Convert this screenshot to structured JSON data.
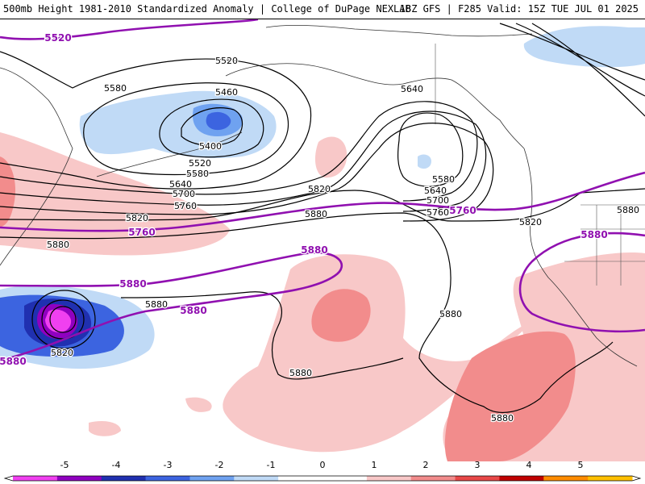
{
  "header": {
    "left_title": "500mb Height 1981-2010 Standardized Anomaly | College of DuPage NEXLAB",
    "right_title": "18Z GFS | F285 Valid: 15Z TUE JUL 01 2025"
  },
  "colors": {
    "ref_contour": "#9010b0",
    "contour": "#000000",
    "coast": "#333333",
    "scale": [
      "#f040f0",
      "#9000c0",
      "#2030b0",
      "#3c64e0",
      "#6fa2f0",
      "#c0daf6",
      "#ffffff",
      "#ffffff",
      "#f8c8c8",
      "#f28c8c",
      "#e84848",
      "#c00000",
      "#ff8c00",
      "#ffc000"
    ]
  },
  "contour_labels": [
    {
      "text": "5520",
      "kind": "ref"
    },
    {
      "text": "5520",
      "kind": "normal"
    },
    {
      "text": "5460",
      "kind": "normal"
    },
    {
      "text": "5580",
      "kind": "normal"
    },
    {
      "text": "5400",
      "kind": "normal"
    },
    {
      "text": "5520",
      "kind": "normal"
    },
    {
      "text": "5580",
      "kind": "normal"
    },
    {
      "text": "5640",
      "kind": "normal"
    },
    {
      "text": "5700",
      "kind": "normal"
    },
    {
      "text": "5760",
      "kind": "normal"
    },
    {
      "text": "5820",
      "kind": "normal"
    },
    {
      "text": "5760",
      "kind": "ref"
    },
    {
      "text": "5880",
      "kind": "normal"
    },
    {
      "text": "5880",
      "kind": "ref"
    },
    {
      "text": "5880",
      "kind": "ref"
    },
    {
      "text": "5880",
      "kind": "normal"
    },
    {
      "text": "5880",
      "kind": "ref"
    },
    {
      "text": "5820",
      "kind": "normal"
    },
    {
      "text": "5880",
      "kind": "ref"
    },
    {
      "text": "5820",
      "kind": "normal"
    },
    {
      "text": "5880",
      "kind": "normal"
    },
    {
      "text": "5640",
      "kind": "normal"
    },
    {
      "text": "5580",
      "kind": "normal"
    },
    {
      "text": "5640",
      "kind": "normal"
    },
    {
      "text": "5700",
      "kind": "normal"
    },
    {
      "text": "5760",
      "kind": "normal"
    },
    {
      "text": "5760",
      "kind": "ref"
    },
    {
      "text": "5820",
      "kind": "normal"
    },
    {
      "text": "5880",
      "kind": "normal"
    },
    {
      "text": "5880",
      "kind": "ref"
    },
    {
      "text": "5880",
      "kind": "normal"
    },
    {
      "text": "5880",
      "kind": "normal"
    },
    {
      "text": "5880",
      "kind": "normal"
    }
  ],
  "colorbar": {
    "ticks": [
      "-5",
      "-4",
      "-3",
      "-2",
      "-1",
      "0",
      "1",
      "2",
      "3",
      "4",
      "5"
    ]
  }
}
